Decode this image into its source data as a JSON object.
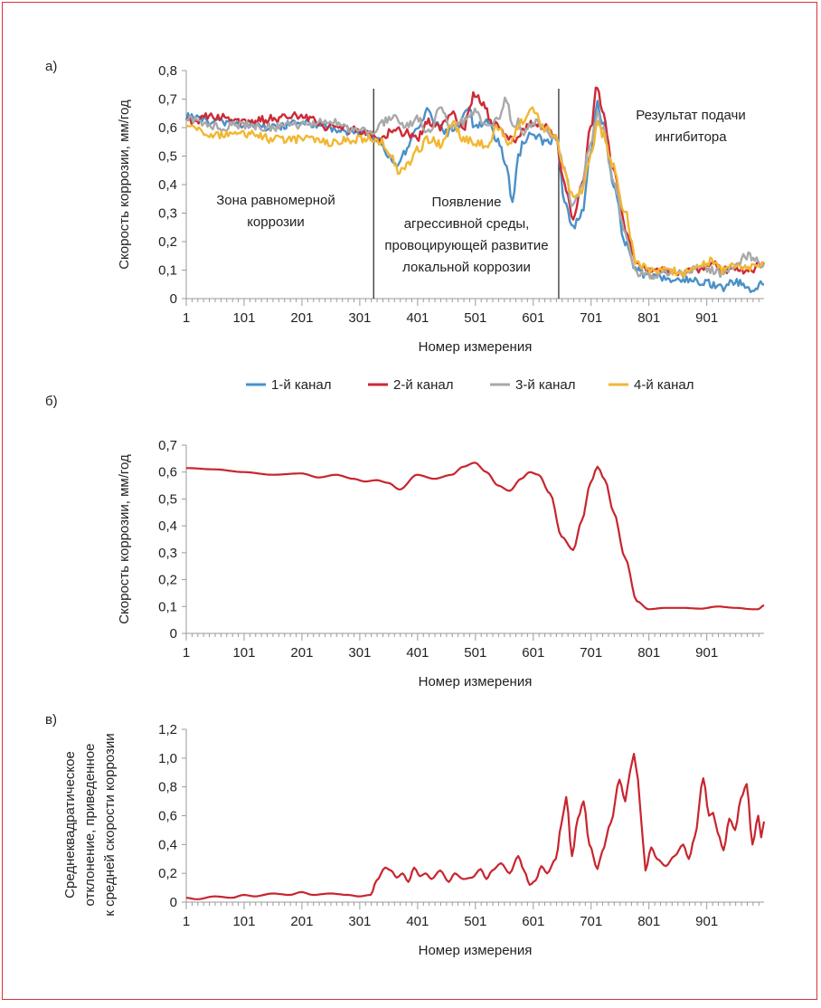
{
  "colors": {
    "frame": "#d9323a",
    "channel1": "#4a90c8",
    "channel2": "#cc2a36",
    "channel3": "#a9a9a9",
    "channel4": "#f2b732",
    "average": "#c8252f"
  },
  "chart_data": [
    {
      "panel": "а)",
      "type": "line",
      "xlabel": "Номер измерения",
      "ylabel": "Скорость коррозии, мм/год",
      "xlim": [
        1,
        1000
      ],
      "ylim": [
        0,
        0.8
      ],
      "x_ticks": [
        "1",
        "101",
        "201",
        "301",
        "401",
        "501",
        "601",
        "701",
        "801",
        "901"
      ],
      "y_ticks": [
        "0",
        "0,1",
        "0,2",
        "0,3",
        "0,4",
        "0,5",
        "0,6",
        "0,7",
        "0,8"
      ],
      "annotations": [
        {
          "text": [
            "Зона равномерной",
            "коррозии"
          ]
        },
        {
          "text": [
            "Появление",
            "агрессивной среды,",
            "провоцирующей развитие",
            "локальной коррозии"
          ]
        },
        {
          "text": [
            "Результат подачи",
            "ингибитора"
          ]
        }
      ],
      "vlines_x": [
        325,
        645
      ],
      "legend": [
        "1-й канал",
        "2-й канал",
        "3-й канал",
        "4-й канал"
      ],
      "series": [
        {
          "name": "1-й канал",
          "x": [
            1,
            50,
            100,
            150,
            200,
            250,
            300,
            320,
            335,
            350,
            365,
            380,
            400,
            420,
            430,
            450,
            470,
            490,
            500,
            520,
            540,
            555,
            565,
            575,
            585,
            600,
            620,
            640,
            655,
            670,
            685,
            700,
            712,
            720,
            740,
            760,
            780,
            800,
            830,
            860,
            890,
            910,
            930,
            950,
            970,
            980,
            1000
          ],
          "y": [
            0.64,
            0.62,
            0.61,
            0.6,
            0.62,
            0.6,
            0.58,
            0.57,
            0.55,
            0.5,
            0.47,
            0.52,
            0.6,
            0.66,
            0.62,
            0.58,
            0.6,
            0.66,
            0.6,
            0.62,
            0.55,
            0.47,
            0.34,
            0.5,
            0.55,
            0.58,
            0.55,
            0.56,
            0.35,
            0.25,
            0.3,
            0.5,
            0.68,
            0.62,
            0.4,
            0.2,
            0.1,
            0.08,
            0.07,
            0.07,
            0.06,
            0.05,
            0.04,
            0.06,
            0.04,
            0.03,
            0.05
          ]
        },
        {
          "name": "2-й канал",
          "x": [
            1,
            50,
            100,
            150,
            200,
            250,
            300,
            320,
            340,
            360,
            380,
            400,
            420,
            440,
            460,
            480,
            500,
            515,
            530,
            550,
            570,
            590,
            600,
            620,
            640,
            655,
            670,
            685,
            700,
            712,
            720,
            740,
            760,
            780,
            800,
            830,
            860,
            890,
            910,
            930,
            950,
            970,
            1000
          ],
          "y": [
            0.62,
            0.64,
            0.62,
            0.63,
            0.64,
            0.6,
            0.59,
            0.57,
            0.56,
            0.6,
            0.58,
            0.56,
            0.62,
            0.6,
            0.65,
            0.6,
            0.72,
            0.68,
            0.62,
            0.58,
            0.56,
            0.6,
            0.62,
            0.6,
            0.57,
            0.4,
            0.27,
            0.4,
            0.6,
            0.75,
            0.66,
            0.45,
            0.25,
            0.12,
            0.1,
            0.1,
            0.09,
            0.1,
            0.12,
            0.1,
            0.11,
            0.1,
            0.12
          ]
        },
        {
          "name": "3-й канал",
          "x": [
            1,
            50,
            100,
            150,
            200,
            250,
            300,
            320,
            340,
            360,
            380,
            400,
            420,
            440,
            460,
            480,
            500,
            520,
            540,
            555,
            565,
            575,
            585,
            600,
            620,
            640,
            655,
            670,
            685,
            700,
            712,
            720,
            740,
            760,
            780,
            800,
            830,
            860,
            890,
            910,
            930,
            950,
            970,
            990,
            1000
          ],
          "y": [
            0.63,
            0.6,
            0.61,
            0.6,
            0.61,
            0.62,
            0.59,
            0.58,
            0.62,
            0.64,
            0.6,
            0.63,
            0.58,
            0.66,
            0.6,
            0.62,
            0.66,
            0.6,
            0.63,
            0.7,
            0.6,
            0.62,
            0.58,
            0.62,
            0.6,
            0.56,
            0.45,
            0.32,
            0.4,
            0.55,
            0.65,
            0.6,
            0.42,
            0.22,
            0.09,
            0.08,
            0.09,
            0.09,
            0.12,
            0.1,
            0.08,
            0.12,
            0.15,
            0.13,
            0.12
          ]
        },
        {
          "name": "4-й канал",
          "x": [
            1,
            50,
            100,
            150,
            200,
            250,
            300,
            320,
            340,
            355,
            370,
            385,
            400,
            420,
            440,
            460,
            480,
            500,
            520,
            540,
            560,
            580,
            600,
            620,
            640,
            655,
            670,
            685,
            700,
            712,
            720,
            740,
            760,
            780,
            800,
            830,
            860,
            890,
            910,
            930,
            950,
            970,
            990,
            1000
          ],
          "y": [
            0.6,
            0.57,
            0.58,
            0.56,
            0.56,
            0.55,
            0.56,
            0.56,
            0.55,
            0.5,
            0.44,
            0.48,
            0.52,
            0.56,
            0.54,
            0.62,
            0.56,
            0.55,
            0.54,
            0.6,
            0.55,
            0.62,
            0.66,
            0.6,
            0.56,
            0.45,
            0.35,
            0.38,
            0.5,
            0.61,
            0.58,
            0.46,
            0.3,
            0.12,
            0.1,
            0.1,
            0.09,
            0.12,
            0.13,
            0.1,
            0.12,
            0.11,
            0.12,
            0.13
          ]
        }
      ]
    },
    {
      "panel": "б)",
      "type": "line",
      "xlabel": "Номер измерения",
      "ylabel": "Скорость коррозии, мм/год",
      "xlim": [
        1,
        1000
      ],
      "ylim": [
        0,
        0.7
      ],
      "x_ticks": [
        "1",
        "101",
        "201",
        "301",
        "401",
        "501",
        "601",
        "701",
        "801",
        "901"
      ],
      "y_ticks": [
        "0",
        "0,1",
        "0,2",
        "0,3",
        "0,4",
        "0,5",
        "0,6",
        "0,7"
      ],
      "series": [
        {
          "x": [
            1,
            50,
            100,
            150,
            200,
            230,
            260,
            290,
            310,
            330,
            350,
            370,
            400,
            430,
            460,
            480,
            500,
            520,
            540,
            560,
            580,
            595,
            610,
            630,
            650,
            670,
            685,
            700,
            712,
            725,
            740,
            760,
            780,
            800,
            830,
            860,
            890,
            920,
            950,
            980,
            990,
            1000
          ],
          "y": [
            0.615,
            0.61,
            0.6,
            0.59,
            0.595,
            0.58,
            0.59,
            0.575,
            0.565,
            0.57,
            0.56,
            0.535,
            0.59,
            0.575,
            0.59,
            0.62,
            0.635,
            0.6,
            0.55,
            0.53,
            0.575,
            0.6,
            0.59,
            0.52,
            0.36,
            0.31,
            0.42,
            0.56,
            0.62,
            0.57,
            0.45,
            0.28,
            0.12,
            0.09,
            0.095,
            0.095,
            0.092,
            0.1,
            0.095,
            0.09,
            0.09,
            0.105
          ]
        }
      ]
    },
    {
      "panel": "в)",
      "type": "line",
      "xlabel": "Номер измерения",
      "ylabel": [
        "Среднеквадратическое",
        "отклонение, приведенное",
        "к средней скорости коррозии"
      ],
      "xlim": [
        1,
        1000
      ],
      "ylim": [
        0,
        1.2
      ],
      "x_ticks": [
        "1",
        "101",
        "201",
        "301",
        "401",
        "501",
        "601",
        "701",
        "801",
        "901"
      ],
      "y_ticks": [
        "0",
        "0,2",
        "0,4",
        "0,6",
        "0,8",
        "1,0",
        "1,2"
      ],
      "series": [
        {
          "x": [
            1,
            20,
            50,
            80,
            100,
            120,
            150,
            180,
            200,
            220,
            250,
            280,
            300,
            320,
            330,
            345,
            355,
            365,
            375,
            385,
            395,
            405,
            415,
            425,
            440,
            455,
            465,
            480,
            495,
            510,
            520,
            530,
            545,
            560,
            575,
            585,
            595,
            605,
            615,
            625,
            640,
            650,
            658,
            668,
            678,
            688,
            698,
            712,
            720,
            735,
            750,
            760,
            768,
            775,
            782,
            790,
            795,
            805,
            815,
            830,
            845,
            860,
            870,
            880,
            895,
            905,
            912,
            920,
            930,
            940,
            950,
            960,
            970,
            980,
            990,
            995,
            1000
          ],
          "y": [
            0.03,
            0.02,
            0.04,
            0.03,
            0.05,
            0.04,
            0.06,
            0.05,
            0.07,
            0.05,
            0.06,
            0.05,
            0.04,
            0.05,
            0.15,
            0.24,
            0.22,
            0.17,
            0.2,
            0.14,
            0.24,
            0.18,
            0.2,
            0.16,
            0.22,
            0.14,
            0.2,
            0.16,
            0.17,
            0.23,
            0.16,
            0.22,
            0.27,
            0.2,
            0.32,
            0.22,
            0.12,
            0.15,
            0.25,
            0.2,
            0.3,
            0.55,
            0.73,
            0.32,
            0.58,
            0.7,
            0.4,
            0.23,
            0.35,
            0.55,
            0.85,
            0.7,
            0.9,
            1.03,
            0.85,
            0.45,
            0.22,
            0.38,
            0.3,
            0.25,
            0.32,
            0.4,
            0.3,
            0.45,
            0.86,
            0.6,
            0.62,
            0.48,
            0.36,
            0.58,
            0.5,
            0.72,
            0.82,
            0.4,
            0.6,
            0.45,
            0.56
          ]
        }
      ]
    }
  ]
}
